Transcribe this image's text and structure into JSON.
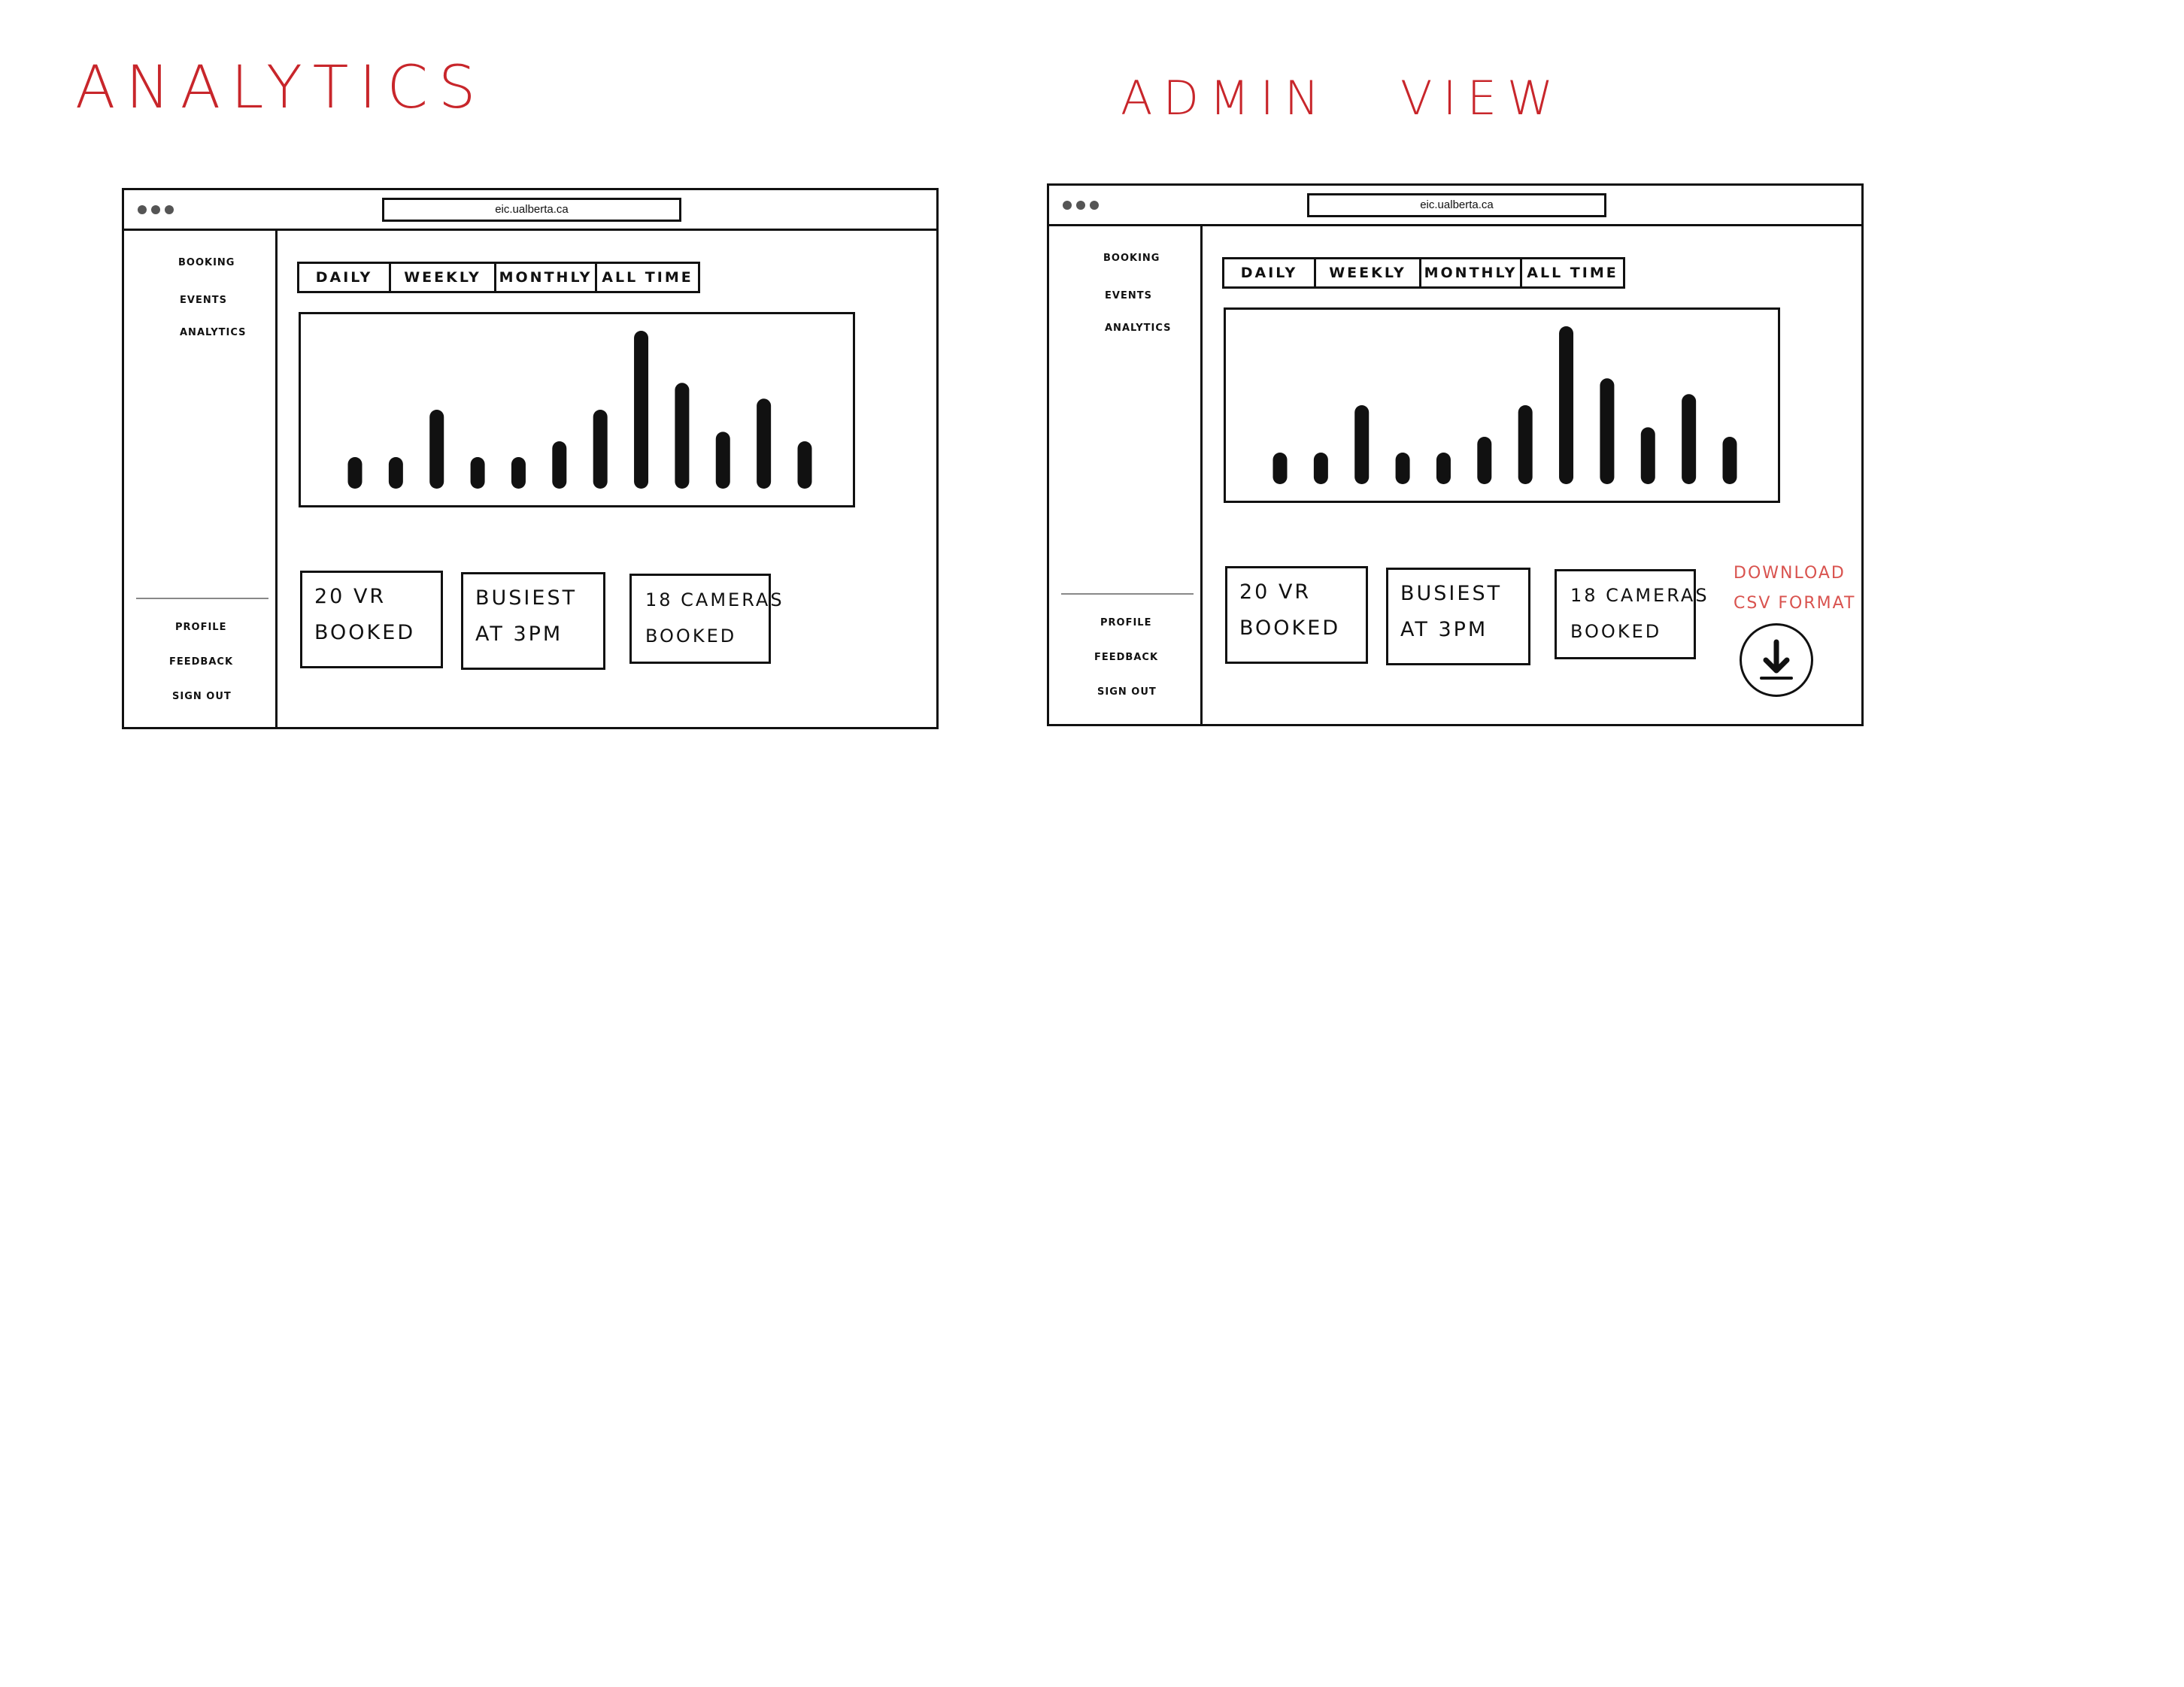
{
  "panels": [
    {
      "heading": "ANALYTICS",
      "url": "eic.ualberta.ca",
      "nav_top": [
        "BOOKING",
        "EVENTS",
        "ANALYTICS"
      ],
      "nav_bottom": [
        "PROFILE",
        "FEEDBACK",
        "SIGN OUT"
      ],
      "tabs": [
        "DAILY",
        "WEEKLY",
        "MONTHLY",
        "ALL TIME"
      ],
      "stats": [
        {
          "line1": "20 VR",
          "line2": "BOOKED"
        },
        {
          "line1": "BUSIEST",
          "line2": "AT 3PM"
        },
        {
          "line1": "18 CAMERAS",
          "line2": "BOOKED"
        }
      ]
    },
    {
      "heading": "ADMIN VIEW",
      "url": "eic.ualberta.ca",
      "nav_top": [
        "BOOKING",
        "EVENTS",
        "ANALYTICS"
      ],
      "nav_bottom": [
        "PROFILE",
        "FEEDBACK",
        "SIGN OUT"
      ],
      "tabs": [
        "DAILY",
        "WEEKLY",
        "MONTHLY",
        "ALL TIME"
      ],
      "stats": [
        {
          "line1": "20 VR",
          "line2": "BOOKED"
        },
        {
          "line1": "BUSIEST",
          "line2": "AT 3PM"
        },
        {
          "line1": "18 CAMERAS",
          "line2": "BOOKED"
        }
      ],
      "download": {
        "line1": "DOWNLOAD",
        "line2": "CSV FORMAT",
        "icon": "download-icon"
      }
    }
  ],
  "chart_data": [
    {
      "type": "bar",
      "title": "",
      "xlabel": "",
      "ylabel": "",
      "ylim": [
        0,
        10
      ],
      "values": [
        2,
        2,
        5,
        2,
        2,
        3,
        5,
        10,
        6.7,
        3.6,
        5.7,
        3
      ]
    },
    {
      "type": "bar",
      "title": "",
      "xlabel": "",
      "ylabel": "",
      "ylim": [
        0,
        10
      ],
      "values": [
        2,
        2,
        5,
        2,
        2,
        3,
        5,
        10,
        6.7,
        3.6,
        5.7,
        3
      ]
    }
  ],
  "colors": {
    "heading": "#c8262b",
    "download": "#d9534f",
    "ink": "#111111"
  }
}
